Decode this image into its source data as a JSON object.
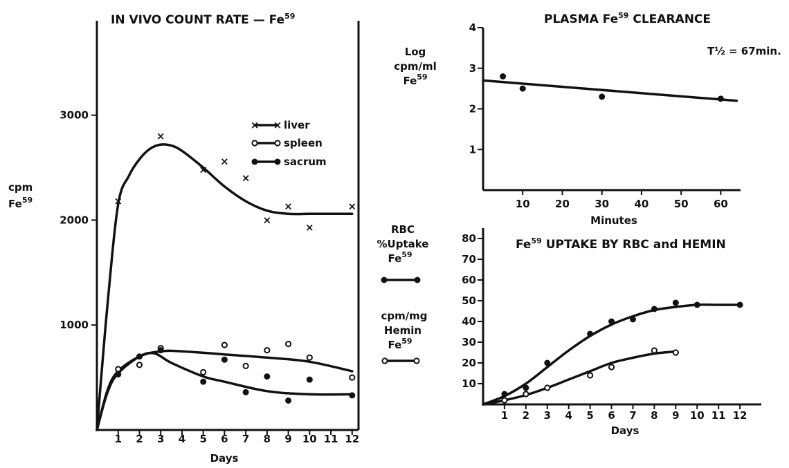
{
  "chart_data": [
    {
      "type": "line",
      "title": "IN VIVO COUNT RATE — Fe",
      "title_sup": "59",
      "ylabel": "cpm",
      "ylabel2": "Fe",
      "ylabel2_sup": "59",
      "xlabel": "Days",
      "xlim": [
        0,
        12.3
      ],
      "ylim": [
        0,
        3900
      ],
      "xticks": [
        1,
        2,
        3,
        4,
        5,
        6,
        7,
        8,
        9,
        10,
        11,
        12
      ],
      "yticks": [
        1000,
        2000,
        3000
      ],
      "grid": false,
      "legend_position": "top-right",
      "series": [
        {
          "name": "liver",
          "marker": "x",
          "points": [
            [
              1,
              2180
            ],
            [
              3,
              2800
            ],
            [
              5,
              2480
            ],
            [
              6,
              2560
            ],
            [
              7,
              2400
            ],
            [
              8,
              2000
            ],
            [
              9,
              2130
            ],
            [
              10,
              1930
            ],
            [
              12,
              2130
            ]
          ],
          "fit": [
            [
              0,
              0
            ],
            [
              0.5,
              1200
            ],
            [
              1,
              2150
            ],
            [
              1.5,
              2420
            ],
            [
              2,
              2580
            ],
            [
              2.5,
              2680
            ],
            [
              3,
              2720
            ],
            [
              3.5,
              2710
            ],
            [
              4,
              2660
            ],
            [
              5,
              2500
            ],
            [
              6,
              2320
            ],
            [
              7,
              2180
            ],
            [
              8,
              2090
            ],
            [
              9,
              2060
            ],
            [
              10,
              2060
            ],
            [
              11,
              2060
            ],
            [
              12,
              2060
            ]
          ]
        },
        {
          "name": "spleen",
          "marker": "open-circle",
          "points": [
            [
              1,
              580
            ],
            [
              2,
              620
            ],
            [
              3,
              780
            ],
            [
              5,
              550
            ],
            [
              6,
              810
            ],
            [
              7,
              610
            ],
            [
              8,
              760
            ],
            [
              9,
              820
            ],
            [
              10,
              690
            ],
            [
              12,
              500
            ]
          ],
          "fit": [
            [
              0,
              0
            ],
            [
              0.5,
              380
            ],
            [
              1,
              560
            ],
            [
              2,
              700
            ],
            [
              3,
              750
            ],
            [
              4,
              750
            ],
            [
              6,
              720
            ],
            [
              8,
              690
            ],
            [
              10,
              650
            ],
            [
              12,
              560
            ]
          ]
        },
        {
          "name": "sacrum",
          "marker": "filled-circle",
          "points": [
            [
              1,
              530
            ],
            [
              2,
              700
            ],
            [
              3,
              760
            ],
            [
              5,
              460
            ],
            [
              6,
              670
            ],
            [
              7,
              360
            ],
            [
              8,
              510
            ],
            [
              9,
              280
            ],
            [
              10,
              480
            ],
            [
              12,
              330
            ]
          ],
          "fit": [
            [
              0,
              0
            ],
            [
              0.5,
              360
            ],
            [
              1,
              540
            ],
            [
              2,
              700
            ],
            [
              2.7,
              730
            ],
            [
              3.5,
              640
            ],
            [
              5,
              510
            ],
            [
              6,
              460
            ],
            [
              8,
              370
            ],
            [
              10,
              340
            ],
            [
              12,
              340
            ]
          ]
        }
      ]
    },
    {
      "type": "line",
      "title": "PLASMA Fe",
      "title_sup": "59",
      "title_after": " CLEARANCE",
      "annotation": "T½ = 67min.",
      "ylabel_lines": [
        "Log",
        "cpm/ml",
        "Fe"
      ],
      "ylabel_sup": "59",
      "xlabel": "Minutes",
      "xlim": [
        0,
        65
      ],
      "ylim": [
        0,
        4
      ],
      "xticks": [
        10,
        20,
        30,
        40,
        50,
        60
      ],
      "yticks": [
        1,
        2,
        3,
        4
      ],
      "grid": false,
      "series": [
        {
          "name": "",
          "marker": "filled-circle",
          "points": [
            [
              5,
              2.8
            ],
            [
              10,
              2.5
            ],
            [
              30,
              2.3
            ],
            [
              60,
              2.25
            ]
          ],
          "fit": [
            [
              0,
              2.7
            ],
            [
              64,
              2.2
            ]
          ]
        }
      ]
    },
    {
      "type": "line",
      "title": "Fe",
      "title_sup": "59",
      "title_after": " UPTAKE BY RBC and HEMIN",
      "xlabel": "Days",
      "xlim": [
        0,
        13
      ],
      "ylim": [
        0,
        85
      ],
      "xticks": [
        1,
        2,
        3,
        4,
        5,
        6,
        7,
        8,
        9,
        10,
        11,
        12
      ],
      "yticks": [
        10,
        20,
        30,
        40,
        50,
        60,
        70,
        80
      ],
      "grid": false,
      "legend_position": "left",
      "series": [
        {
          "name": "RBC\n%Uptake\nFe",
          "name_lines": [
            "RBC",
            "%Uptake",
            "Fe"
          ],
          "name_sup": "59",
          "marker": "filled-circle",
          "points": [
            [
              1,
              5
            ],
            [
              2,
              8
            ],
            [
              3,
              20
            ],
            [
              5,
              34
            ],
            [
              6,
              40
            ],
            [
              7,
              41
            ],
            [
              8,
              46
            ],
            [
              9,
              49
            ],
            [
              10,
              48
            ],
            [
              12,
              48
            ]
          ],
          "fit": [
            [
              0,
              0
            ],
            [
              1,
              4
            ],
            [
              2,
              10
            ],
            [
              3,
              18
            ],
            [
              4,
              26
            ],
            [
              5,
              33
            ],
            [
              6,
              38.5
            ],
            [
              7,
              42.5
            ],
            [
              8,
              45.5
            ],
            [
              9,
              47
            ],
            [
              10,
              48
            ],
            [
              11,
              48
            ],
            [
              12,
              48
            ]
          ]
        },
        {
          "name": "cpm/mg\nHemin\nFe",
          "name_lines": [
            "cpm/mg",
            "Hemin",
            "Fe"
          ],
          "name_sup": "59",
          "marker": "open-circle",
          "points": [
            [
              1,
              2
            ],
            [
              2,
              5
            ],
            [
              3,
              8
            ],
            [
              5,
              14
            ],
            [
              6,
              18
            ],
            [
              8,
              26
            ],
            [
              9,
              25
            ]
          ],
          "fit": [
            [
              0,
              0
            ],
            [
              1,
              2
            ],
            [
              2,
              4.5
            ],
            [
              3,
              8
            ],
            [
              4,
              12
            ],
            [
              5,
              16
            ],
            [
              6,
              20
            ],
            [
              7,
              22.5
            ],
            [
              8,
              24.5
            ],
            [
              9,
              25.5
            ]
          ]
        }
      ]
    }
  ]
}
